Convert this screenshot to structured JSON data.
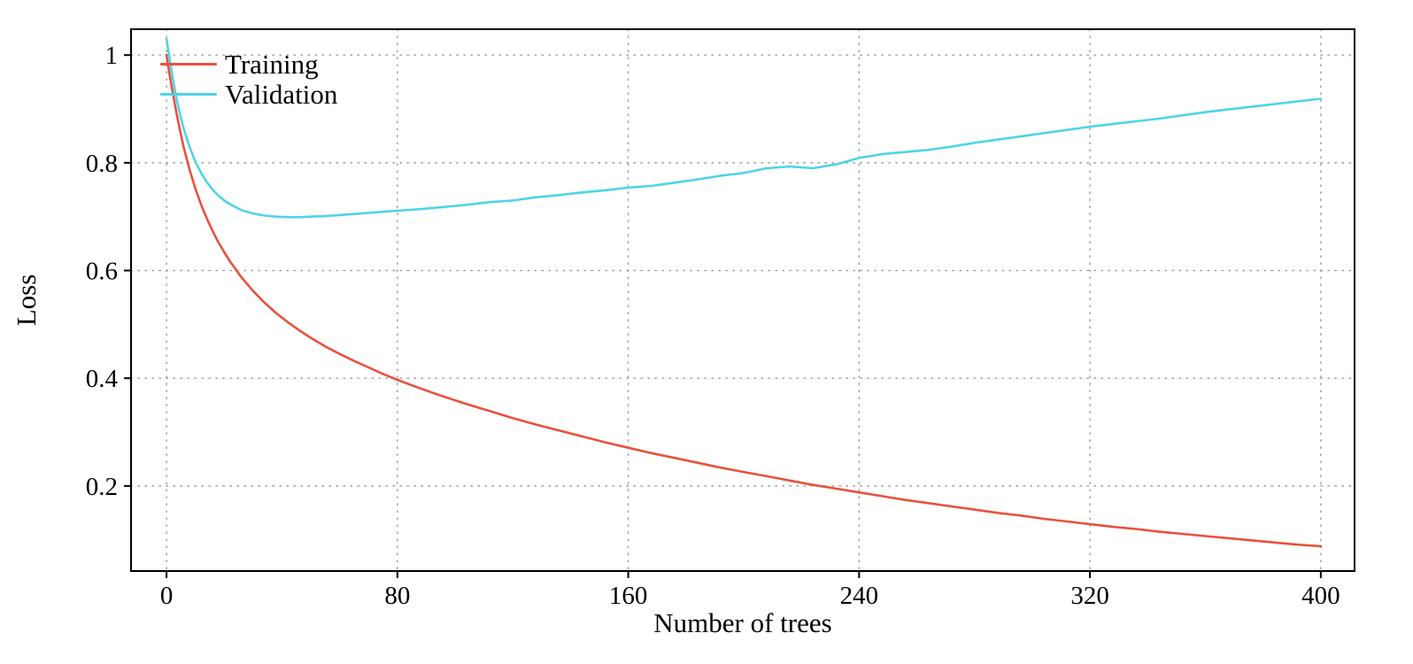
{
  "chart_data": {
    "type": "line",
    "title": "",
    "xlabel": "Number of trees",
    "ylabel": "Loss",
    "x_ticks": [
      0,
      80,
      160,
      240,
      320,
      400
    ],
    "y_ticks": [
      0.2,
      0.4,
      0.6,
      0.8,
      1
    ],
    "xlim": [
      -12.3,
      411.7
    ],
    "ylim": [
      0.042,
      1.048
    ],
    "grid": "dotted",
    "legend_position": "top-left-inside",
    "frame_color": "#000000",
    "grid_color": "#9a9a9a",
    "x": [
      0,
      1,
      2,
      3,
      4,
      5,
      6,
      8,
      10,
      12,
      14,
      16,
      18,
      20,
      22,
      26,
      30,
      34,
      38,
      42,
      46,
      50,
      55,
      60,
      65,
      70,
      75,
      80,
      88,
      96,
      104,
      112,
      120,
      128,
      136,
      144,
      152,
      160,
      168,
      176,
      184,
      192,
      200,
      208,
      216,
      224,
      232,
      240,
      248,
      256,
      264,
      272,
      280,
      288,
      296,
      304,
      312,
      320,
      328,
      336,
      344,
      352,
      360,
      368,
      376,
      384,
      392,
      400
    ],
    "series": [
      {
        "name": "Training",
        "color": "#e8513e",
        "values": [
          1.0,
          0.965,
          0.935,
          0.905,
          0.878,
          0.852,
          0.828,
          0.787,
          0.752,
          0.722,
          0.696,
          0.673,
          0.652,
          0.634,
          0.617,
          0.587,
          0.562,
          0.54,
          0.521,
          0.504,
          0.489,
          0.475,
          0.459,
          0.445,
          0.432,
          0.42,
          0.408,
          0.397,
          0.381,
          0.366,
          0.352,
          0.339,
          0.326,
          0.314,
          0.303,
          0.292,
          0.281,
          0.271,
          0.261,
          0.252,
          0.243,
          0.234,
          0.226,
          0.218,
          0.21,
          0.202,
          0.195,
          0.188,
          0.181,
          0.174,
          0.168,
          0.162,
          0.156,
          0.15,
          0.145,
          0.139,
          0.134,
          0.129,
          0.124,
          0.12,
          0.115,
          0.111,
          0.107,
          0.103,
          0.099,
          0.095,
          0.091,
          0.088
        ]
      },
      {
        "name": "Validation",
        "color": "#4ed4e6",
        "values": [
          1.03,
          0.995,
          0.962,
          0.932,
          0.906,
          0.883,
          0.863,
          0.829,
          0.802,
          0.781,
          0.764,
          0.75,
          0.739,
          0.73,
          0.723,
          0.712,
          0.706,
          0.702,
          0.7,
          0.699,
          0.699,
          0.7,
          0.701,
          0.703,
          0.705,
          0.707,
          0.709,
          0.711,
          0.714,
          0.718,
          0.722,
          0.727,
          0.73,
          0.736,
          0.74,
          0.745,
          0.749,
          0.754,
          0.757,
          0.763,
          0.769,
          0.776,
          0.781,
          0.79,
          0.793,
          0.79,
          0.797,
          0.809,
          0.816,
          0.82,
          0.824,
          0.83,
          0.837,
          0.843,
          0.849,
          0.855,
          0.861,
          0.867,
          0.872,
          0.877,
          0.882,
          0.888,
          0.894,
          0.899,
          0.904,
          0.909,
          0.914,
          0.919
        ]
      }
    ]
  }
}
